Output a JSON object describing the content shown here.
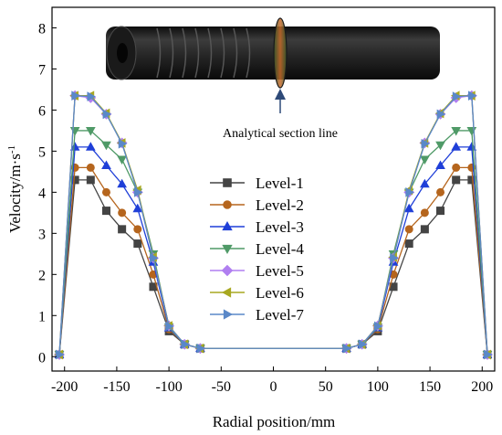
{
  "chart_data": {
    "type": "line",
    "xlabel": "Radial position/mm",
    "ylabel_main": "Velocity/m·s",
    "ylabel_sup": "-1",
    "xlim": [
      -212,
      212
    ],
    "ylim": [
      -0.35,
      8.5
    ],
    "xticks": [
      -200,
      -150,
      -100,
      -50,
      0,
      50,
      100,
      150,
      200
    ],
    "yticks": [
      0,
      1,
      2,
      3,
      4,
      5,
      6,
      7,
      8
    ],
    "x": [
      -205,
      -190,
      -175,
      -160,
      -145,
      -130,
      -115,
      -100,
      -85,
      -70,
      70,
      85,
      100,
      115,
      130,
      145,
      160,
      175,
      190,
      205
    ],
    "series": [
      {
        "name": "Level-1",
        "color": "#444444",
        "marker": "square",
        "values": [
          0.05,
          4.3,
          4.3,
          3.55,
          3.1,
          2.75,
          1.7,
          0.62,
          0.3,
          0.2,
          0.2,
          0.3,
          0.62,
          1.7,
          2.75,
          3.1,
          3.55,
          4.3,
          4.3,
          0.05
        ]
      },
      {
        "name": "Level-2",
        "color": "#b5651d",
        "marker": "circle",
        "values": [
          0.05,
          4.6,
          4.6,
          4.0,
          3.5,
          3.1,
          2.0,
          0.67,
          0.3,
          0.2,
          0.2,
          0.3,
          0.67,
          2.0,
          3.1,
          3.5,
          4.0,
          4.6,
          4.6,
          0.05
        ]
      },
      {
        "name": "Level-3",
        "color": "#1f3fd8",
        "marker": "triangle-up",
        "values": [
          0.05,
          5.1,
          5.1,
          4.65,
          4.2,
          3.6,
          2.3,
          0.7,
          0.3,
          0.2,
          0.2,
          0.3,
          0.7,
          2.3,
          3.6,
          4.2,
          4.65,
          5.1,
          5.1,
          0.05
        ]
      },
      {
        "name": "Level-4",
        "color": "#4f9a67",
        "marker": "triangle-down",
        "values": [
          0.05,
          5.5,
          5.5,
          5.15,
          4.8,
          4.0,
          2.5,
          0.72,
          0.3,
          0.2,
          0.2,
          0.3,
          0.72,
          2.5,
          4.0,
          4.8,
          5.15,
          5.5,
          5.5,
          0.05
        ]
      },
      {
        "name": "Level-5",
        "color": "#b07ff0",
        "marker": "diamond",
        "values": [
          0.05,
          6.35,
          6.3,
          5.9,
          5.2,
          4.0,
          2.4,
          0.75,
          0.3,
          0.2,
          0.2,
          0.3,
          0.75,
          2.4,
          4.0,
          5.2,
          5.9,
          6.3,
          6.35,
          0.05
        ]
      },
      {
        "name": "Level-6",
        "color": "#a8a821",
        "marker": "triangle-left",
        "values": [
          0.05,
          6.35,
          6.35,
          5.92,
          5.2,
          4.05,
          2.42,
          0.75,
          0.3,
          0.2,
          0.2,
          0.3,
          0.75,
          2.42,
          4.05,
          5.2,
          5.92,
          6.35,
          6.35,
          0.05
        ]
      },
      {
        "name": "Level-7",
        "color": "#5a88c8",
        "marker": "triangle-right",
        "values": [
          0.05,
          6.35,
          6.33,
          5.9,
          5.18,
          4.0,
          2.4,
          0.74,
          0.3,
          0.2,
          0.2,
          0.3,
          0.74,
          2.4,
          4.0,
          5.18,
          5.9,
          6.33,
          6.35,
          0.05
        ]
      }
    ],
    "legend_position": "center-left",
    "grid": false,
    "annotation": "Analytical section line"
  }
}
